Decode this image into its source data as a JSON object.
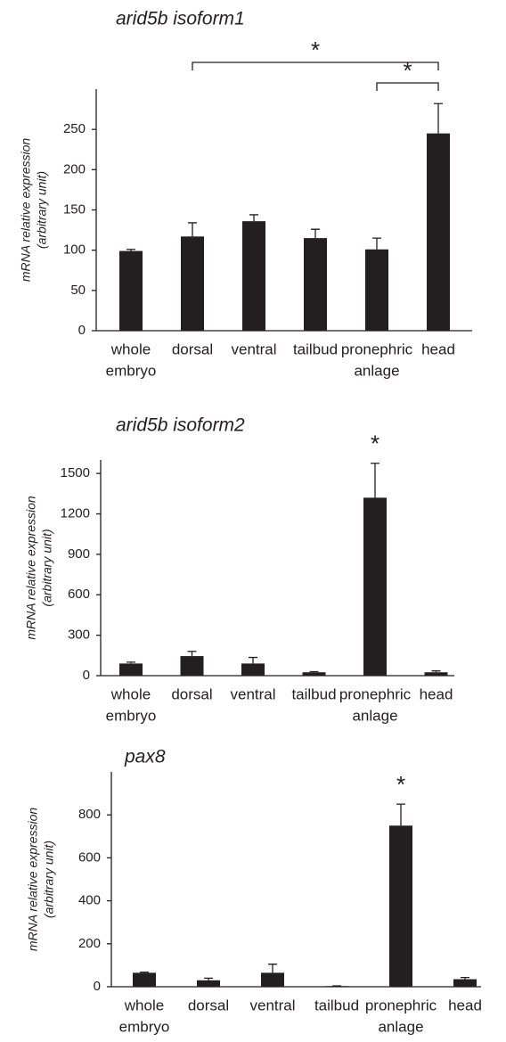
{
  "chart_data": [
    {
      "type": "bar",
      "title": "arid5b isoform1",
      "ylabel": [
        "mRNA relative expression",
        "(arbitrary unit)"
      ],
      "categories": [
        [
          "whole",
          "embryo"
        ],
        [
          "dorsal"
        ],
        [
          "ventral"
        ],
        [
          "tailbud"
        ],
        [
          "pronephric",
          "anlage"
        ],
        [
          "head"
        ]
      ],
      "values": [
        99,
        117,
        136,
        115,
        101,
        245
      ],
      "errors": [
        2,
        17,
        8,
        11,
        14,
        37
      ],
      "color": "#231f20",
      "ylim": [
        0,
        300
      ],
      "yticks": [
        0,
        50,
        100,
        150,
        200,
        250
      ],
      "annotations": [
        {
          "text": "*",
          "from": 1,
          "to": 5
        },
        {
          "text": "*",
          "from": 4,
          "to": 5
        }
      ]
    },
    {
      "type": "bar",
      "title": "arid5b isoform2",
      "ylabel": [
        "mRNA relative expression",
        "(arbitrary unit)"
      ],
      "categories": [
        [
          "whole",
          "embryo"
        ],
        [
          "dorsal"
        ],
        [
          "ventral"
        ],
        [
          "tailbud"
        ],
        [
          "pronephric",
          "anlage"
        ],
        [
          "head"
        ]
      ],
      "values": [
        90,
        145,
        90,
        25,
        1320,
        25
      ],
      "errors": [
        10,
        35,
        45,
        5,
        255,
        10
      ],
      "color": "#231f20",
      "ylim": [
        0,
        1600
      ],
      "yticks": [
        0,
        300,
        600,
        900,
        1200,
        1500
      ],
      "annotations": [
        {
          "text": "*",
          "at": 4
        }
      ]
    },
    {
      "type": "bar",
      "title": "pax8",
      "ylabel": [
        "mRNA relative expression",
        "(arbitrary unit)"
      ],
      "categories": [
        [
          "whole",
          "embryo"
        ],
        [
          "dorsal"
        ],
        [
          "ventral"
        ],
        [
          "tailbud"
        ],
        [
          "pronephric",
          "anlage"
        ],
        [
          "head"
        ]
      ],
      "values": [
        65,
        30,
        65,
        3,
        750,
        35
      ],
      "errors": [
        3,
        10,
        40,
        1,
        100,
        8
      ],
      "color": "#231f20",
      "ylim": [
        0,
        1000
      ],
      "yticks": [
        0,
        200,
        400,
        600,
        800
      ],
      "annotations": [
        {
          "text": "*",
          "at": 4
        }
      ]
    }
  ]
}
